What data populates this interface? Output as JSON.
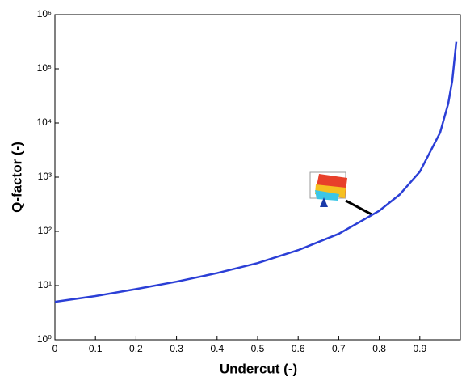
{
  "chart_data": {
    "type": "line",
    "x_label": "Undercut (-)",
    "y_label": "Q-factor (-)",
    "x": [
      0,
      0.1,
      0.2,
      0.3,
      0.4,
      0.5,
      0.6,
      0.7,
      0.8,
      0.85,
      0.9,
      0.95,
      0.97,
      0.98,
      0.99
    ],
    "series": [
      {
        "color": "#2b3fd6",
        "values": [
          5,
          6.4,
          8.6,
          11.8,
          17,
          26,
          45,
          90,
          240,
          475,
          1260,
          6600,
          22600,
          60000,
          315000
        ]
      }
    ],
    "xlim": [
      0,
      1
    ],
    "xticks": [
      0,
      0.1,
      0.2,
      0.3,
      0.4,
      0.5,
      0.6,
      0.7,
      0.8,
      0.9
    ],
    "ylim": [
      1,
      1000000
    ],
    "y_scale": "log",
    "yticks": [
      {
        "value": 1,
        "label": "10⁰"
      },
      {
        "value": 10,
        "label": "10¹"
      },
      {
        "value": 100,
        "label": "10²"
      },
      {
        "value": 1000,
        "label": "10³"
      },
      {
        "value": 10000,
        "label": "10⁴"
      },
      {
        "value": 100000,
        "label": "10⁵"
      },
      {
        "value": 1000000,
        "label": "10⁶"
      }
    ]
  }
}
